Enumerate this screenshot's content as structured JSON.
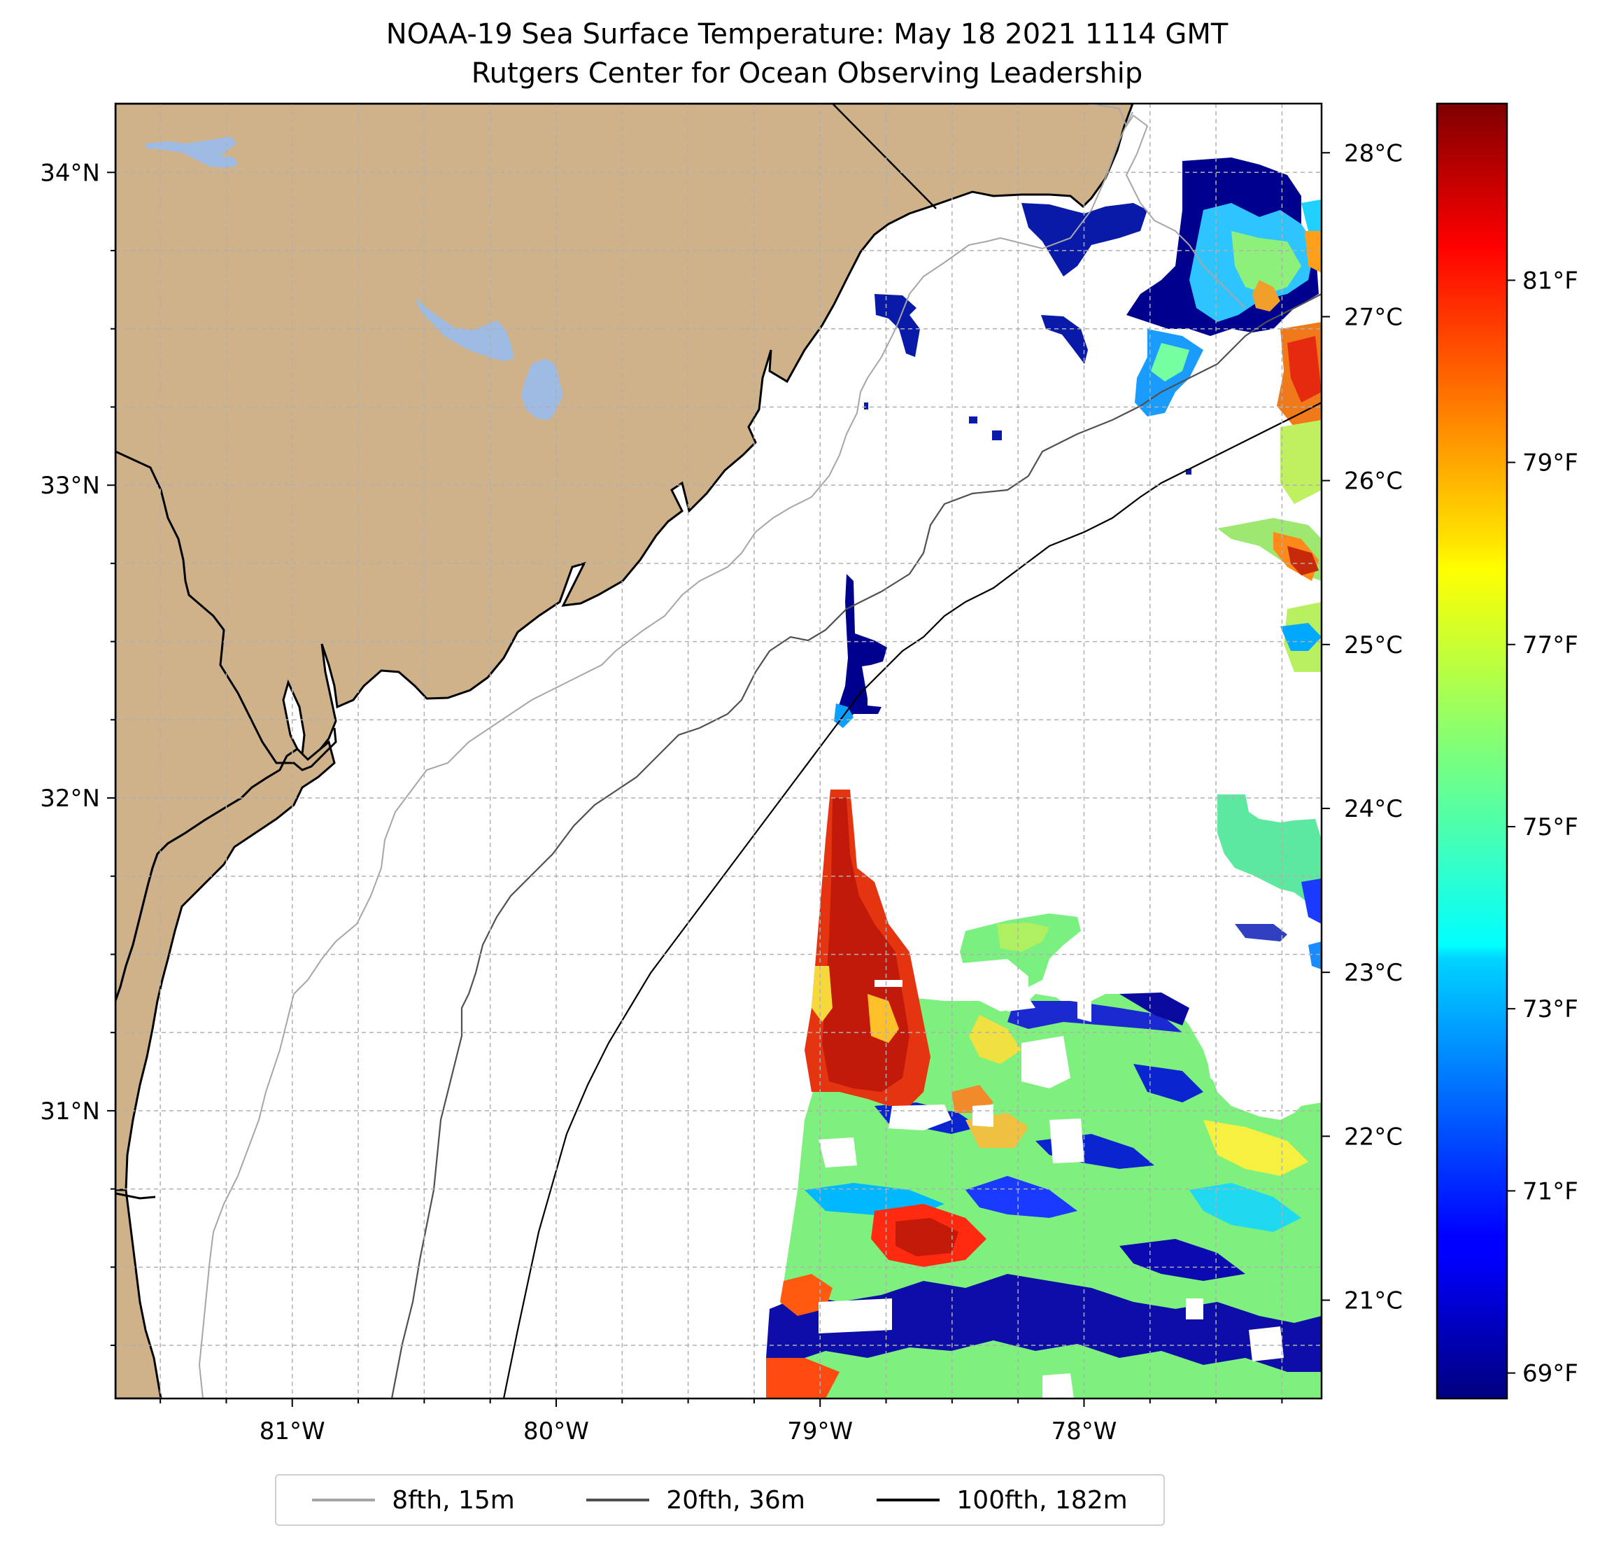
{
  "title": {
    "line1": "NOAA-19 Sea Surface Temperature: May 18 2021 1114 GMT",
    "line2": "Rutgers Center for Ocean Observing Leadership"
  },
  "map": {
    "lon_range": [
      -81.67,
      -77.1
    ],
    "lat_range": [
      30.08,
      34.22
    ],
    "lon_ticks": [
      {
        "value": -81,
        "label": "81°W"
      },
      {
        "value": -80,
        "label": "80°W"
      },
      {
        "value": -79,
        "label": "79°W"
      },
      {
        "value": -78,
        "label": "78°W"
      }
    ],
    "lat_ticks": [
      {
        "value": 34,
        "label": "34°N"
      },
      {
        "value": 33,
        "label": "33°N"
      },
      {
        "value": 32,
        "label": "32°N"
      },
      {
        "value": 31,
        "label": "31°N"
      }
    ],
    "colors": {
      "land": "#cfb28a",
      "water_body": "#9ebbe3",
      "coast": "#000000",
      "grid": "#b0b0b0"
    }
  },
  "legend": [
    {
      "label": "8fth, 15m",
      "color": "#a6a6a6"
    },
    {
      "label": "20fth, 36m",
      "color": "#505050"
    },
    {
      "label": "100fth, 182m",
      "color": "#000000"
    }
  ],
  "colorbar": {
    "colormap": "jet",
    "range_c": [
      20.4,
      28.3
    ],
    "celsius_ticks": [
      {
        "value": 28,
        "label": "28°C"
      },
      {
        "value": 27,
        "label": "27°C"
      },
      {
        "value": 26,
        "label": "26°C"
      },
      {
        "value": 25,
        "label": "25°C"
      },
      {
        "value": 24,
        "label": "24°C"
      },
      {
        "value": 23,
        "label": "23°C"
      },
      {
        "value": 22,
        "label": "22°C"
      },
      {
        "value": 21,
        "label": "21°C"
      }
    ],
    "fahrenheit_ticks": [
      {
        "value": 81,
        "label": "81°F"
      },
      {
        "value": 79,
        "label": "79°F"
      },
      {
        "value": 77,
        "label": "77°F"
      },
      {
        "value": 75,
        "label": "75°F"
      },
      {
        "value": 73,
        "label": "73°F"
      },
      {
        "value": 71,
        "label": "71°F"
      },
      {
        "value": 69,
        "label": "69°F"
      }
    ]
  }
}
